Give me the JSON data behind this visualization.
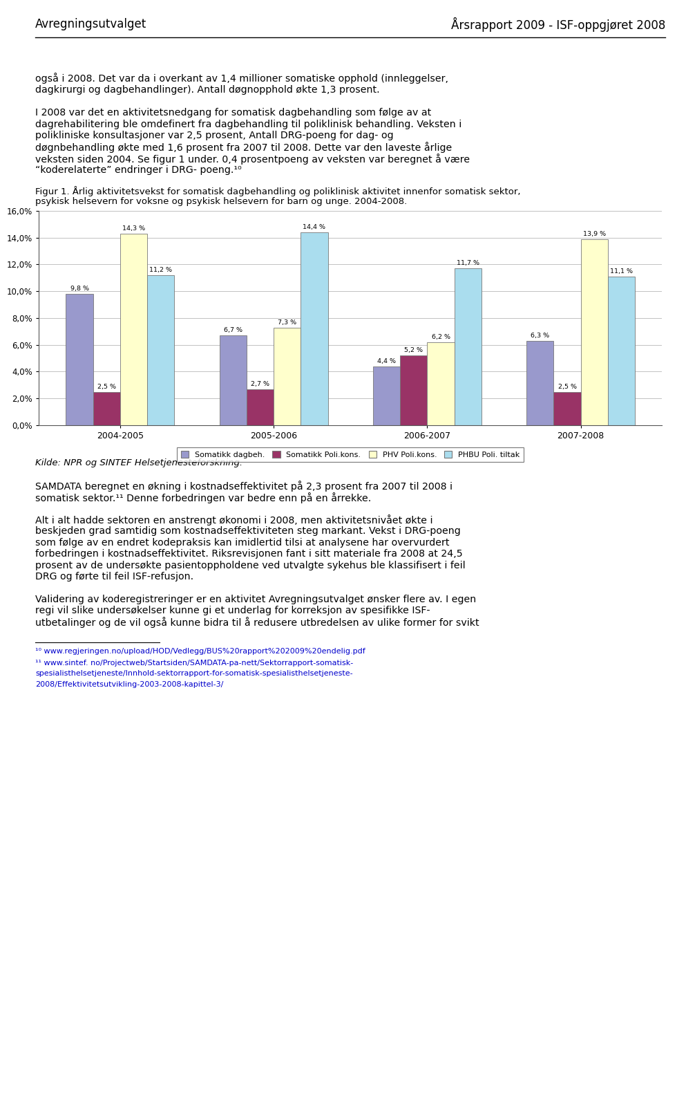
{
  "title_left": "Avregningsutvalget",
  "title_right": "Årsrapport 2009 - ISF-oppgjøret 2008",
  "body_para1": "også i 2008. Det var da i overkant av 1,4 millioner somatiske opphold (innleggelser,\ndagkirurgi og dagbehandlinger). Antall døgnopphold økte 1,3 prosent.",
  "body_para2_lines": [
    "I 2008 var det en aktivitetsnedgang for somatisk dagbehandling som følge av at",
    "dagrehabilitering ble omdefinert fra dagbehandling til poliklinisk behandling. Veksten i",
    "polikliniske konsultasjoner var 2,5 prosent, Antall DRG-poeng for dag- og",
    "døgnbehandling økte med 1,6 prosent fra 2007 til 2008. Dette var den laveste årlige",
    "veksten siden 2004. Se figur 1 under. 0,4 prosentpoeng av veksten var beregnet å være",
    "“koderelaterte” endringer i DRG- poeng.¹⁰"
  ],
  "figure_caption_line1": "Figur 1. Årlig aktivitetsvekst for somatisk dagbehandling og poliklinisk aktivitet innenfor somatisk sektor,",
  "figure_caption_line2": "psykisk helsevern for voksne og psykisk helsevern for barn og unge. 2004-2008.",
  "source_text": "Kilde: NPR og SINTEF Helsetjenesteforskning.",
  "body_para3_lines": [
    "SAMDATA beregnet en økning i kostnadseffektivitet på 2,3 prosent fra 2007 til 2008 i",
    "somatisk sektor.¹¹ Denne forbedringen var bedre enn på en årrekke."
  ],
  "body_para4_lines": [
    "Alt i alt hadde sektoren en anstrengt økonomi i 2008, men aktivitetsnivået økte i",
    "beskjeden grad samtidig som kostnadseffektiviteten steg markant. Vekst i DRG-poeng",
    "som følge av en endret kodepraksis kan imidlertid tilsi at analysene har overvurdert",
    "forbedringen i kostnadseffektivitet. Riksrevisjonen fant i sitt materiale fra 2008 at 24,5",
    "prosent av de undersøkte pasientoppholdene ved utvalgte sykehus ble klassifisert i feil",
    "DRG og førte til feil ISF-refusjon."
  ],
  "body_para5_lines": [
    "Validering av koderegistreringer er en aktivitet Avregningsutvalget ønsker flere av. I egen",
    "regi vil slike undersøkelser kunne gi et underlag for korreksjon av spesifikke ISF-",
    "utbetalinger og de vil også kunne bidra til å redusere utbredelsen av ulike former for svikt"
  ],
  "footnote1_num": "¹⁰",
  "footnote1_text": " www.regjeringen.no/upload/HOD/Vedlegg/BUS%20rapport%202009%20endelig.pdf",
  "footnote2_num": "¹¹",
  "footnote2_text": " www.sintef. no/Projectweb/Startsiden/SAMDATA-pa-nett/Sektorrapport-somatisk-",
  "footnote2_line2": "spesialisthelsetjeneste/Innhold-sektorrapport-for-somatisk-spesialisthelsetjeneste-",
  "footnote2_line3": "2008/Effektivitetsutvikling-2003-2008-kapittel-3/",
  "chart": {
    "categories": [
      "2004-2005",
      "2005-2006",
      "2006-2007",
      "2007-2008"
    ],
    "series": [
      {
        "name": "Somatikk dagbeh.",
        "values": [
          9.8,
          6.7,
          4.4,
          6.3
        ],
        "color": "#9999cc"
      },
      {
        "name": "Somatikk Poli.kons.",
        "values": [
          2.5,
          2.7,
          5.2,
          2.5
        ],
        "color": "#993366"
      },
      {
        "name": "PHV Poli.kons.",
        "values": [
          14.3,
          7.3,
          6.2,
          13.9
        ],
        "color": "#ffffcc"
      },
      {
        "name": "PHBU Poli. tiltak",
        "values": [
          11.2,
          14.4,
          11.7,
          11.1
        ],
        "color": "#aaddee"
      }
    ],
    "ylim": [
      0,
      16
    ],
    "yticks": [
      0,
      2,
      4,
      6,
      8,
      10,
      12,
      14,
      16
    ],
    "ytick_labels": [
      "0,0%",
      "2,0%",
      "4,0%",
      "6,0%",
      "8,0%",
      "10,0%",
      "12,0%",
      "14,0%",
      "16,0%"
    ]
  }
}
